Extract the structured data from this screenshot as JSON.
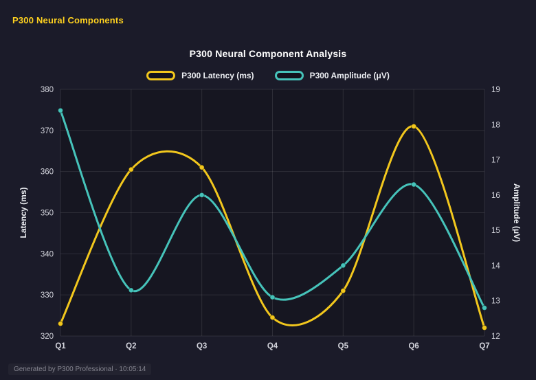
{
  "header": {
    "title": "P300 Neural Components"
  },
  "footer": {
    "text": "Generated by P300 Professional · 10:05:14"
  },
  "chart_data": {
    "type": "line",
    "title": "P300 Neural Component Analysis",
    "categories": [
      "Q1",
      "Q2",
      "Q3",
      "Q4",
      "Q5",
      "Q6",
      "Q7"
    ],
    "series": [
      {
        "name": "P300 Latency (ms)",
        "axis": "left",
        "color": "#f2c71d",
        "values": [
          323,
          360.5,
          361,
          324.5,
          331,
          371,
          322
        ]
      },
      {
        "name": "P300 Amplitude (μV)",
        "axis": "right",
        "color": "#46c3ba",
        "values": [
          18.4,
          13.3,
          16.0,
          13.1,
          14.0,
          16.3,
          12.8
        ]
      }
    ],
    "axes": {
      "left": {
        "label": "Latency (ms)",
        "min": 320,
        "max": 380,
        "ticks": [
          380,
          370,
          360,
          350,
          340,
          330,
          320
        ]
      },
      "right": {
        "label": "Amplitude (μV)",
        "min": 12,
        "max": 19,
        "ticks": [
          19,
          18,
          17,
          16,
          15,
          14,
          13,
          12
        ]
      }
    },
    "legend_position": "top",
    "grid": true,
    "style": {
      "grid_color": "rgba(255,255,255,0.10)",
      "tick_color": "#d4d5dd",
      "axis_title_color": "#eceef2",
      "plot_bg": "rgba(0,0,0,0.18)"
    }
  }
}
